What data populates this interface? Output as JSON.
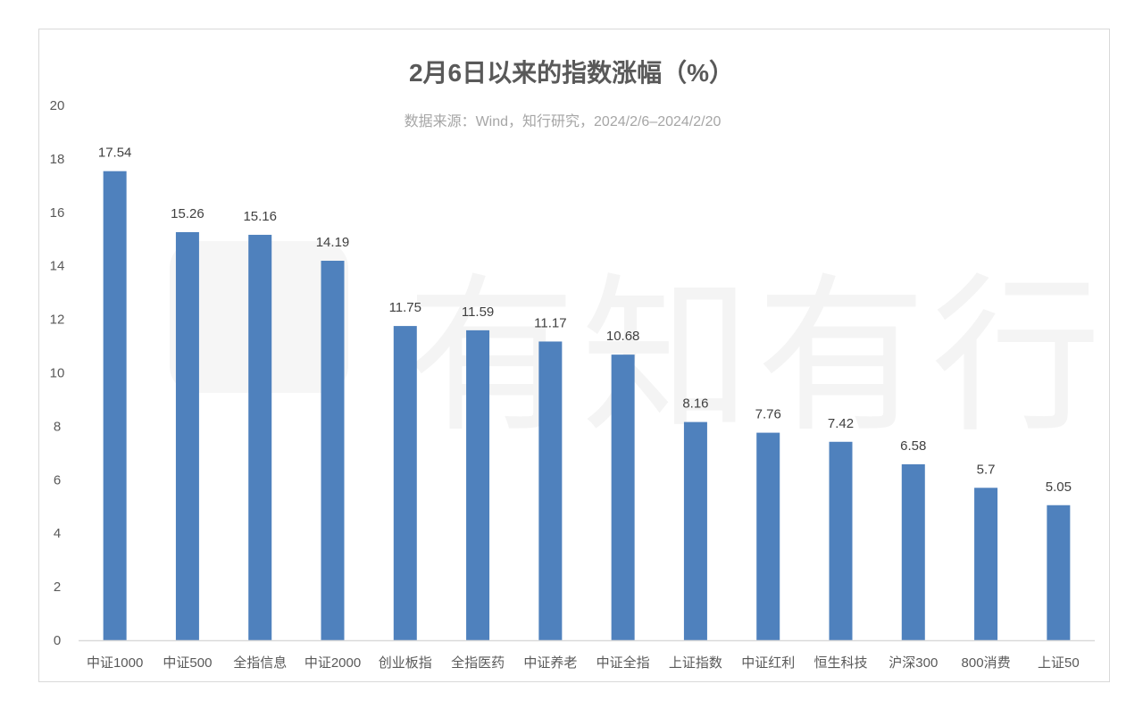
{
  "chart_data": {
    "type": "bar",
    "title": "2月6日以来的指数涨幅（%）",
    "subtitle": "数据来源：Wind，知行研究，2024/2/6–2024/2/20",
    "watermark": "有知有行",
    "categories": [
      "中证1000",
      "中证500",
      "全指信息",
      "中证2000",
      "创业板指",
      "全指医药",
      "中证养老",
      "中证全指",
      "上证指数",
      "中证红利",
      "恒生科技",
      "沪深300",
      "800消费",
      "上证50"
    ],
    "values": [
      17.54,
      15.26,
      15.16,
      14.19,
      11.75,
      11.59,
      11.17,
      10.68,
      8.16,
      7.76,
      7.42,
      6.58,
      5.7,
      5.05
    ],
    "data_labels": [
      "17.54",
      "15.26",
      "15.16",
      "14.19",
      "11.75",
      "11.59",
      "11.17",
      "10.68",
      "8.16",
      "7.76",
      "7.42",
      "6.58",
      "5.7",
      "5.05"
    ],
    "xlabel": "",
    "ylabel": "",
    "ylim": [
      0,
      20
    ],
    "yticks": [
      "0",
      "2",
      "4",
      "6",
      "8",
      "10",
      "12",
      "14",
      "16",
      "18",
      "20"
    ],
    "grid": false,
    "legend": "none",
    "bar_color": "#4f81bd"
  }
}
